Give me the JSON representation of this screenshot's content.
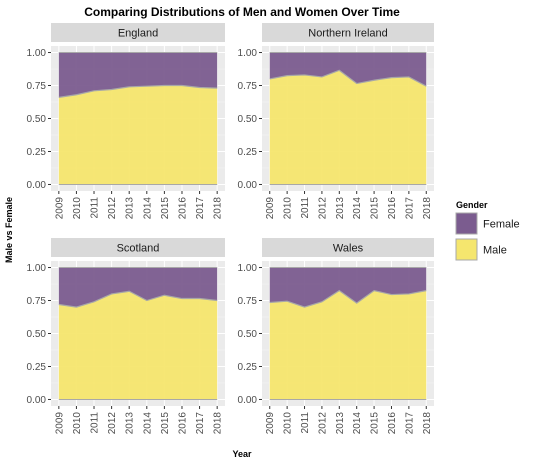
{
  "title": "Comparing Distributions of Men and Women Over Time",
  "chart_data": {
    "type": "area",
    "title": "Comparing Distributions of Men and Women Over Time",
    "xlabel": "Year",
    "ylabel": "Male vs Female",
    "x": [
      2009,
      2010,
      2011,
      2012,
      2013,
      2014,
      2015,
      2016,
      2017,
      2018
    ],
    "ylim": [
      0,
      1
    ],
    "yticks": [
      "0.00",
      "0.25",
      "0.50",
      "0.75",
      "1.00"
    ],
    "stacked": "fill",
    "legend": {
      "title": "Gender",
      "position": "right",
      "entries": [
        {
          "label": "Female",
          "color": "#7b5c8f"
        },
        {
          "label": "Male",
          "color": "#f5e66e"
        }
      ]
    },
    "colors": {
      "female": "#7b5c8f",
      "male": "#f5e66e",
      "line": "#a8a8a8",
      "panel": "#ebebeb",
      "strip": "#d9d9d9"
    },
    "facets": [
      {
        "name": "England",
        "male": [
          0.66,
          0.68,
          0.71,
          0.72,
          0.74,
          0.745,
          0.75,
          0.75,
          0.735,
          0.73
        ]
      },
      {
        "name": "Northern Ireland",
        "male": [
          0.8,
          0.825,
          0.83,
          0.815,
          0.865,
          0.765,
          0.79,
          0.81,
          0.815,
          0.745
        ]
      },
      {
        "name": "Scotland",
        "male": [
          0.72,
          0.7,
          0.74,
          0.8,
          0.82,
          0.75,
          0.79,
          0.765,
          0.765,
          0.75
        ]
      },
      {
        "name": "Wales",
        "male": [
          0.735,
          0.745,
          0.7,
          0.74,
          0.825,
          0.73,
          0.825,
          0.795,
          0.8,
          0.825
        ]
      }
    ]
  }
}
